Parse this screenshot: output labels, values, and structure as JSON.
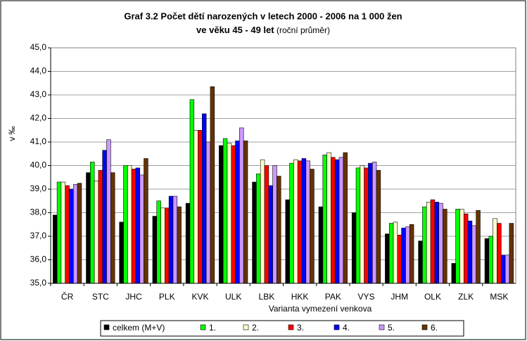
{
  "chart_data": {
    "type": "bar",
    "title": "Graf 3.2 Počet dětí narozených v letech 2000 - 2006 na 1 000 žen",
    "subtitle": "ve věku 45 - 49 let",
    "subtitle_note": "(roční průměr)",
    "y_label": "v ‰",
    "x_label": "Varianta vymezení venkova",
    "categories": [
      "ČR",
      "STC",
      "JHC",
      "PLK",
      "KVK",
      "ULK",
      "LBK",
      "HKK",
      "PAK",
      "VYS",
      "JHM",
      "OLK",
      "ZLK",
      "MSK"
    ],
    "series": [
      {
        "name": "celkem (M+V)",
        "color": "#000000",
        "values": [
          37.9,
          39.7,
          37.6,
          37.85,
          38.4,
          40.85,
          39.3,
          38.55,
          38.25,
          38.0,
          37.1,
          36.8,
          35.85,
          36.9
        ]
      },
      {
        "name": "1.",
        "color": "#00ff00",
        "values": [
          39.3,
          40.15,
          40.0,
          38.5,
          42.8,
          41.15,
          39.65,
          40.1,
          40.45,
          39.9,
          37.55,
          38.25,
          38.15,
          37.0
        ]
      },
      {
        "name": "2.",
        "color": "#ffffcc",
        "values": [
          39.3,
          39.35,
          40.0,
          38.2,
          41.5,
          40.95,
          40.25,
          40.25,
          40.55,
          40.0,
          37.6,
          38.45,
          38.15,
          37.75
        ]
      },
      {
        "name": "3.",
        "color": "#ff0000",
        "values": [
          39.15,
          39.8,
          39.85,
          38.2,
          41.5,
          40.85,
          40.0,
          40.2,
          40.35,
          39.9,
          37.05,
          38.55,
          37.95,
          37.55
        ]
      },
      {
        "name": "4.",
        "color": "#0000ff",
        "values": [
          39.0,
          40.65,
          39.9,
          38.7,
          42.2,
          41.05,
          39.15,
          40.3,
          40.25,
          40.1,
          37.35,
          38.45,
          37.65,
          36.2
        ]
      },
      {
        "name": "5.",
        "color": "#cc99ff",
        "values": [
          39.2,
          41.1,
          39.6,
          38.7,
          41.0,
          41.6,
          40.0,
          40.2,
          40.35,
          40.15,
          37.4,
          38.4,
          37.45,
          36.2
        ]
      },
      {
        "name": "6.",
        "color": "#663300",
        "values": [
          39.25,
          39.7,
          40.3,
          38.25,
          43.35,
          41.05,
          39.55,
          39.85,
          40.55,
          39.8,
          37.5,
          38.15,
          38.1,
          37.55
        ]
      }
    ],
    "ylim": [
      35,
      45
    ],
    "yticks": [
      {
        "value": 35,
        "label": "35,0"
      },
      {
        "value": 36,
        "label": "36,0"
      },
      {
        "value": 37,
        "label": "37,0"
      },
      {
        "value": 38,
        "label": "38,0"
      },
      {
        "value": 39,
        "label": "39,0"
      },
      {
        "value": 40,
        "label": "40,0"
      },
      {
        "value": 41,
        "label": "41,0"
      },
      {
        "value": 42,
        "label": "42,0"
      },
      {
        "value": 43,
        "label": "43,0"
      },
      {
        "value": 44,
        "label": "44,0"
      },
      {
        "value": 45,
        "label": "45,0"
      }
    ],
    "grid": true
  }
}
